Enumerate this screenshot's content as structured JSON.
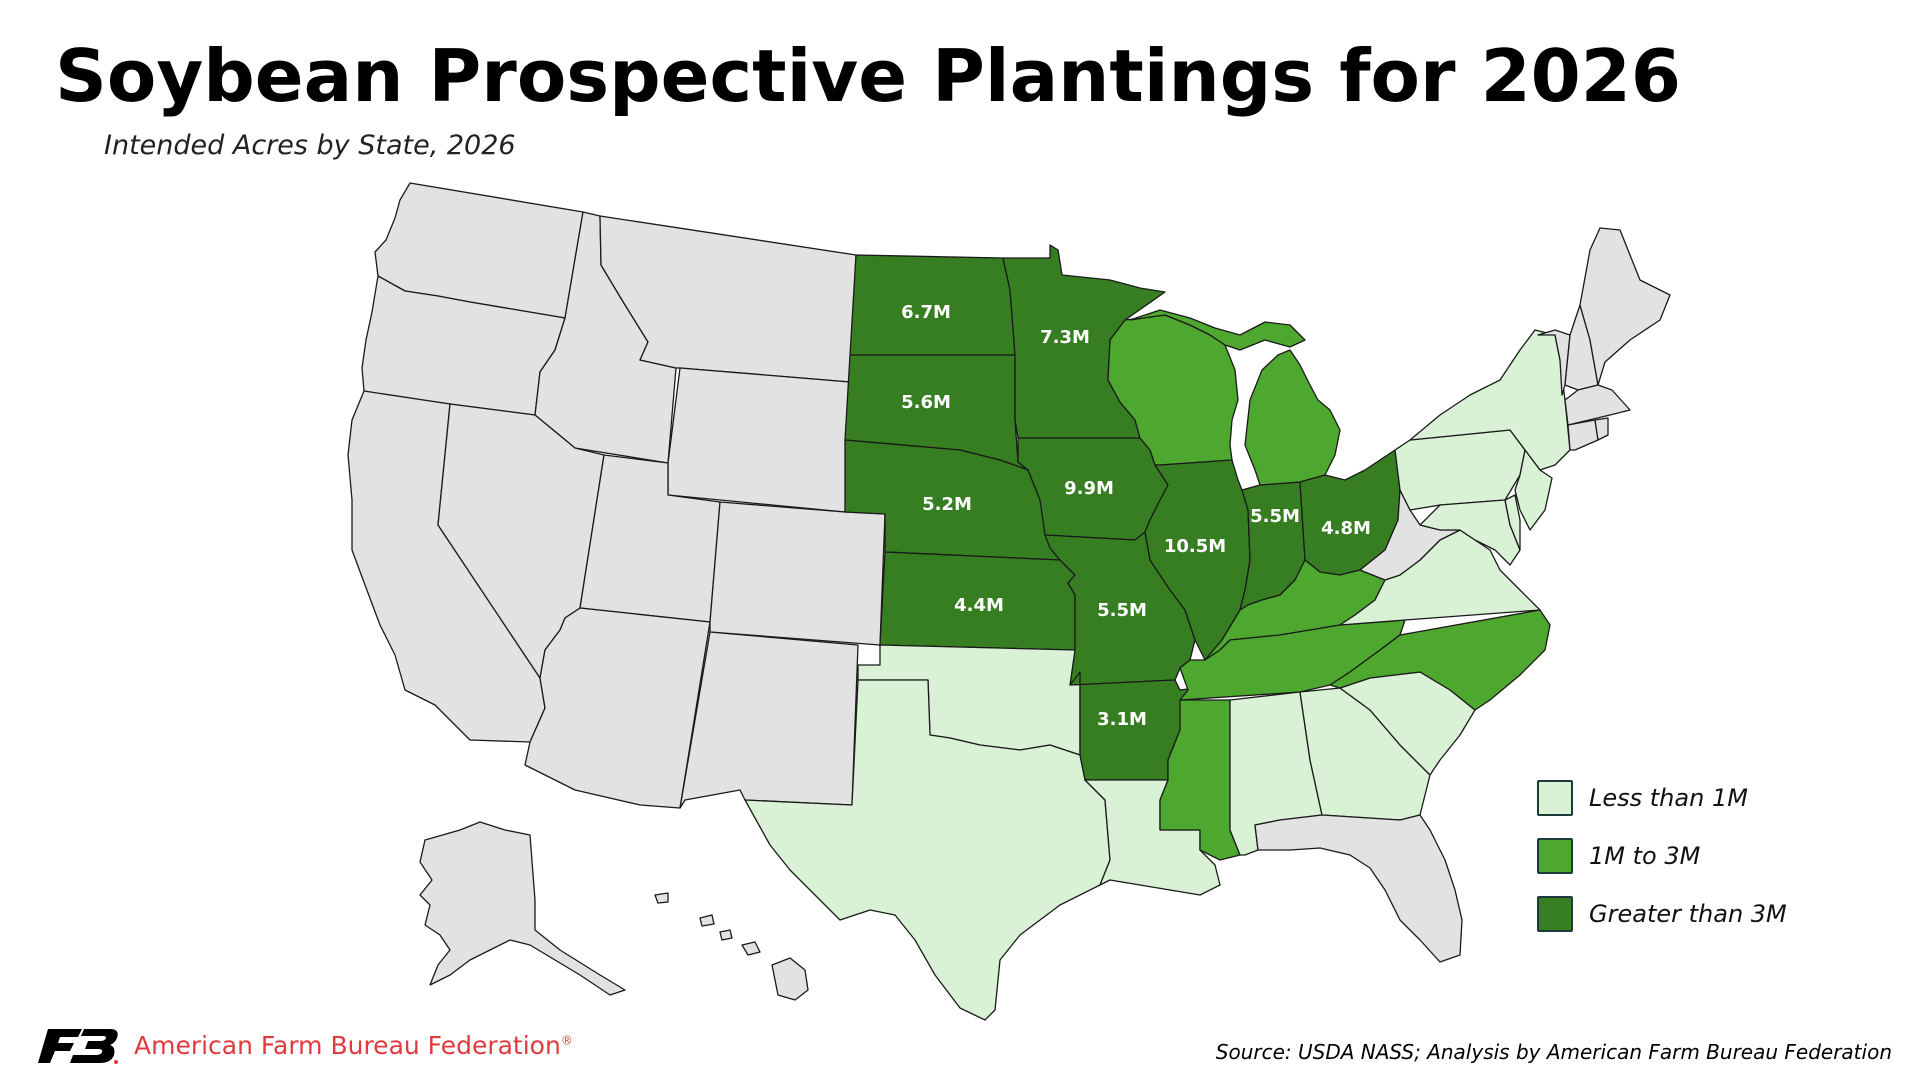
{
  "title": "Soybean Prospective Plantings for 2026",
  "subtitle": "Intended Acres by State, 2026",
  "colors": {
    "none": "#e2e2e2",
    "low": "#d9f2d5",
    "mid": "#4ea72f",
    "high": "#377e22",
    "border": "#1a1a1a",
    "brand_red": "#e03a3e"
  },
  "legend": [
    {
      "label": "Less than 1M",
      "color": "#d9f2d5"
    },
    {
      "label": "1M to 3M",
      "color": "#4ea72f"
    },
    {
      "label": "Greater than 3M",
      "color": "#377e22"
    }
  ],
  "state_labels": {
    "ND": "6.7M",
    "MN": "7.3M",
    "SD": "5.6M",
    "NE": "5.2M",
    "IA": "9.9M",
    "IL": "10.5M",
    "IN": "5.5M",
    "OH": "4.8M",
    "KS": "4.4M",
    "MO": "5.5M",
    "AR": "3.1M"
  },
  "brand": {
    "name": "American Farm Bureau Federation",
    "mark": "®",
    "logo_icon": "afbf-logo-icon"
  },
  "source": "Source: USDA NASS; Analysis by American Farm Bureau Federation"
}
